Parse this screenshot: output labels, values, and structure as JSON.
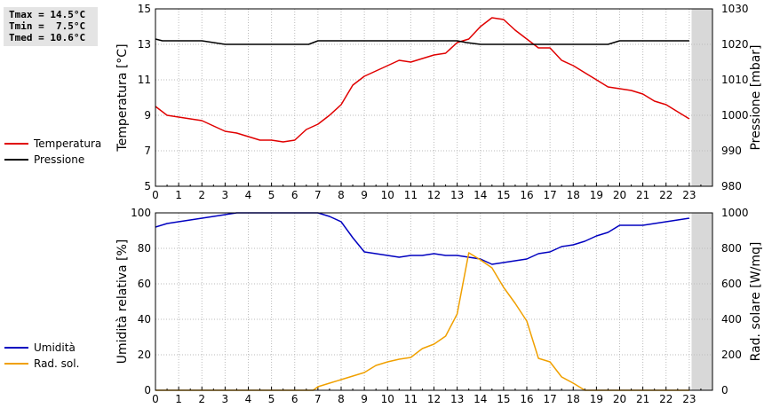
{
  "stats": {
    "tmax": "Tmax = 14.5°C",
    "tmin": "Tmin =  7.5°C",
    "tmed": "Tmed = 10.6°C"
  },
  "colors": {
    "temperature": "#e00000",
    "pressure": "#000000",
    "humidity": "#0000c0",
    "solar": "#f0a000",
    "future_band": "#d8d8d8"
  },
  "chart_data": [
    {
      "type": "line",
      "ylabel": "Temperatura [°C]",
      "ylabel_right": "Pressione [mbar]",
      "xlim": [
        0,
        24
      ],
      "ylim": [
        5,
        15
      ],
      "ylim_right": [
        980,
        1030
      ],
      "x_ticks": [
        0,
        1,
        2,
        3,
        4,
        5,
        6,
        7,
        8,
        9,
        10,
        11,
        12,
        13,
        14,
        15,
        16,
        17,
        18,
        19,
        20,
        21,
        22,
        23
      ],
      "y_ticks": [
        5,
        7,
        9,
        11,
        13,
        15
      ],
      "y_ticks_right": [
        980,
        990,
        1000,
        1010,
        1020,
        1030
      ],
      "grid": true,
      "shaded_region": [
        23.1,
        24
      ],
      "legend_position": "left",
      "series": [
        {
          "name": "Temperatura",
          "axis": "left",
          "x": [
            0,
            0.5,
            1,
            1.5,
            2,
            2.5,
            3,
            3.5,
            4,
            4.5,
            5,
            5.5,
            6,
            6.5,
            7,
            7.5,
            8,
            8.5,
            9,
            9.5,
            10,
            10.5,
            11,
            11.5,
            12,
            12.5,
            13,
            13.5,
            14,
            14.5,
            15,
            15.5,
            16,
            16.5,
            17,
            17.5,
            18,
            18.5,
            19,
            19.5,
            20,
            20.5,
            21,
            21.5,
            22,
            22.5,
            23
          ],
          "values": [
            9.5,
            9.0,
            8.9,
            8.8,
            8.7,
            8.4,
            8.1,
            8.0,
            7.8,
            7.6,
            7.6,
            7.5,
            7.6,
            8.2,
            8.5,
            9.0,
            9.6,
            10.7,
            11.2,
            11.5,
            11.8,
            12.1,
            12.0,
            12.2,
            12.4,
            12.5,
            13.1,
            13.3,
            14.0,
            14.5,
            14.4,
            13.8,
            13.3,
            12.8,
            12.8,
            12.1,
            11.8,
            11.4,
            11.0,
            10.6,
            10.5,
            10.4,
            10.2,
            9.8,
            9.6,
            9.2,
            8.8
          ]
        },
        {
          "name": "Pressione",
          "axis": "right",
          "x": [
            0,
            0.3,
            1,
            2,
            2.5,
            3,
            4,
            5,
            6,
            6.6,
            7,
            8,
            9,
            10,
            11,
            12,
            13,
            13.4,
            14,
            15,
            16,
            17,
            18,
            19,
            19.5,
            20,
            21,
            22,
            23
          ],
          "values": [
            1021.5,
            1021,
            1021,
            1021,
            1020.5,
            1020,
            1020,
            1020,
            1020,
            1020,
            1021,
            1021,
            1021,
            1021,
            1021,
            1021,
            1021,
            1020.5,
            1020,
            1020,
            1020,
            1020,
            1020,
            1020,
            1020,
            1021,
            1021,
            1021,
            1021
          ]
        }
      ]
    },
    {
      "type": "line",
      "ylabel": "Umidità relativa [%]",
      "ylabel_right": "Rad. solare [W/mq]",
      "xlim": [
        0,
        24
      ],
      "ylim": [
        0,
        100
      ],
      "ylim_right": [
        0,
        1000
      ],
      "x_ticks": [
        0,
        1,
        2,
        3,
        4,
        5,
        6,
        7,
        8,
        9,
        10,
        11,
        12,
        13,
        14,
        15,
        16,
        17,
        18,
        19,
        20,
        21,
        22,
        23
      ],
      "y_ticks": [
        0,
        20,
        40,
        60,
        80,
        100
      ],
      "y_ticks_right": [
        0,
        200,
        400,
        600,
        800,
        1000
      ],
      "grid": true,
      "shaded_region": [
        23.1,
        24
      ],
      "legend_position": "left",
      "series": [
        {
          "name": "Umidità",
          "axis": "left",
          "x": [
            0,
            0.5,
            1,
            1.5,
            2,
            2.5,
            3,
            3.5,
            4,
            4.5,
            5,
            5.5,
            6,
            6.5,
            7,
            7.5,
            8,
            8.5,
            9,
            9.5,
            10,
            10.5,
            11,
            11.5,
            12,
            12.5,
            13,
            13.5,
            14,
            14.5,
            15,
            15.5,
            16,
            16.5,
            17,
            17.5,
            18,
            18.5,
            19,
            19.5,
            20,
            20.5,
            21,
            21.5,
            22,
            22.5,
            23
          ],
          "values": [
            92,
            94,
            95,
            96,
            97,
            98,
            99,
            100,
            100,
            100,
            100,
            100,
            100,
            100,
            100,
            98,
            95,
            86,
            78,
            77,
            76,
            75,
            76,
            76,
            77,
            76,
            76,
            75,
            74,
            71,
            72,
            73,
            74,
            77,
            78,
            81,
            82,
            84,
            87,
            89,
            93,
            93,
            93,
            94,
            95,
            96,
            97
          ]
        },
        {
          "name": "Rad. sol.",
          "axis": "right",
          "x": [
            0,
            1,
            2,
            3,
            4,
            5,
            6,
            6.8,
            7,
            7.5,
            8,
            8.5,
            9,
            9.5,
            10,
            10.5,
            11,
            11.5,
            12,
            12.5,
            13,
            13.5,
            14,
            14.5,
            15,
            15.5,
            16,
            16.5,
            17,
            17.5,
            18,
            18.5,
            19,
            20,
            21,
            22,
            23
          ],
          "values": [
            0,
            0,
            0,
            0,
            0,
            0,
            0,
            0,
            20,
            40,
            60,
            80,
            100,
            140,
            160,
            175,
            185,
            235,
            260,
            305,
            430,
            775,
            735,
            690,
            580,
            490,
            390,
            180,
            160,
            75,
            40,
            0,
            0,
            0,
            0,
            0,
            0
          ]
        }
      ]
    }
  ]
}
